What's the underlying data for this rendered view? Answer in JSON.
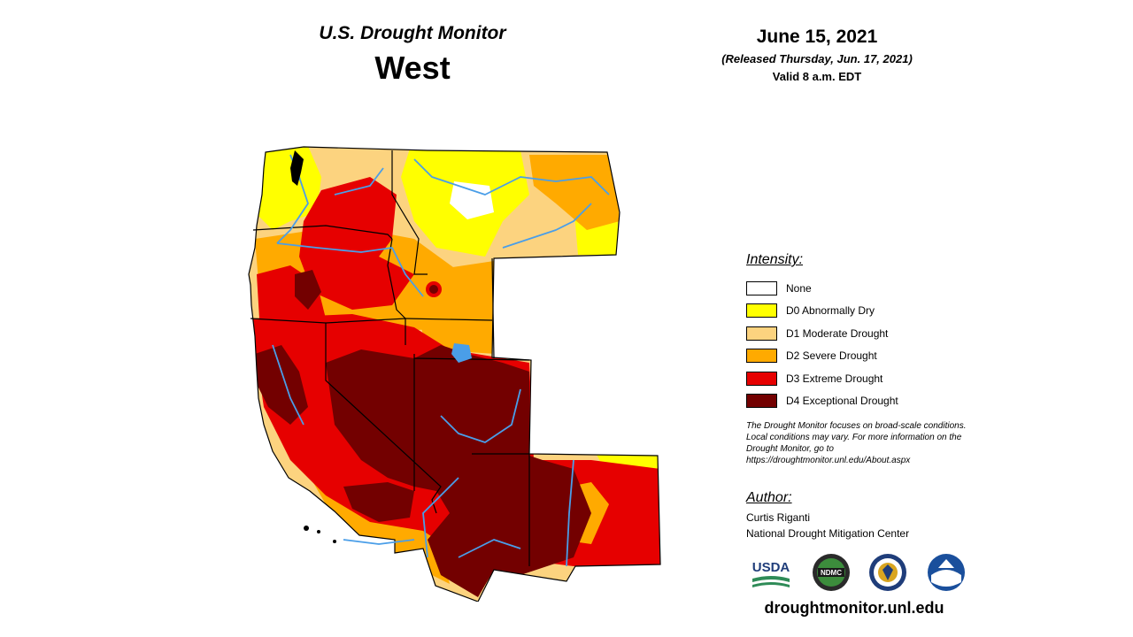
{
  "header": {
    "title_small": "U.S. Drought Monitor",
    "title_big": "West"
  },
  "date": {
    "main": "June 15, 2021",
    "released": "(Released Thursday, Jun. 17, 2021)",
    "valid": "Valid 8 a.m. EDT"
  },
  "legend": {
    "heading": "Intensity:",
    "items": [
      {
        "label": "None",
        "color": "#ffffff"
      },
      {
        "label": "D0 Abnormally Dry",
        "color": "#ffff00"
      },
      {
        "label": "D1 Moderate Drought",
        "color": "#fcd37f"
      },
      {
        "label": "D2 Severe Drought",
        "color": "#ffaa00"
      },
      {
        "label": "D3 Extreme Drought",
        "color": "#e60000"
      },
      {
        "label": "D4 Exceptional Drought",
        "color": "#730000"
      }
    ]
  },
  "note": "The Drought Monitor focuses on broad-scale conditions. Local conditions may vary. For more information on the Drought Monitor, go to https://droughtmonitor.unl.edu/About.aspx",
  "author": {
    "heading": "Author:",
    "name": "Curtis Riganti",
    "organization": "National Drought Mitigation Center"
  },
  "logos": {
    "usda": "USDA",
    "ndmc": "NDMC",
    "commerce": "commerce-seal",
    "noaa": "NOAA"
  },
  "footer": {
    "url": "droughtmonitor.unl.edu"
  },
  "colors": {
    "none": "#ffffff",
    "d0": "#ffff00",
    "d1": "#fcd37f",
    "d2": "#ffaa00",
    "d3": "#e60000",
    "d4": "#730000",
    "river": "#4a9ee8",
    "border": "#000000"
  }
}
